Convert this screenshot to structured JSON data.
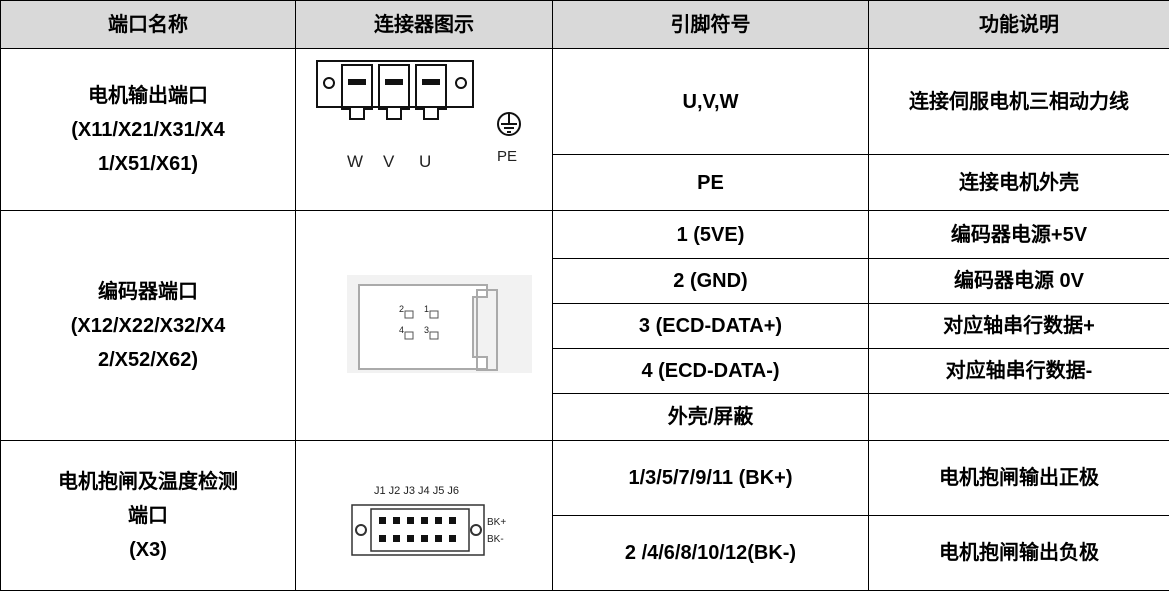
{
  "table": {
    "header": [
      "端口名称",
      "连接器图示",
      "引脚符号",
      "功能说明"
    ],
    "groups": [
      {
        "port": [
          "电机输出端口",
          "(X11/X21/X31/X4",
          "1/X51/X61)"
        ],
        "figure": [
          "W",
          "V",
          "U",
          "PE"
        ],
        "rows": [
          [
            "U,V,W",
            "连接伺服电机三相动力线"
          ],
          [
            "PE",
            "连接电机外壳"
          ]
        ]
      },
      {
        "port": [
          "编码器端口",
          "(X12/X22/X32/X4",
          "2/X52/X62)"
        ],
        "figure": [
          "2",
          "1",
          "4",
          "3"
        ],
        "rows": [
          [
            "1 (5VE)",
            "编码器电源+5V"
          ],
          [
            "2 (GND)",
            "编码器电源 0V"
          ],
          [
            "3 (ECD-DATA+)",
            "对应轴串行数据+"
          ],
          [
            "4 (ECD-DATA-)",
            "对应轴串行数据-"
          ],
          [
            "外壳/屏蔽"
          ]
        ]
      },
      {
        "port": [
          "电机抱闸及温度检测",
          "端口",
          "(X3)"
        ],
        "figure": [
          "J1 J2 J3 J4 J5 J6",
          "BK+",
          "BK-"
        ],
        "rows": [
          [
            "1/3/5/7/9/11 (BK+)",
            "电机抱闸输出正极"
          ],
          [
            "2 /4/6/8/10/12(BK-)",
            "电机抱闸输出负极"
          ]
        ]
      }
    ]
  }
}
